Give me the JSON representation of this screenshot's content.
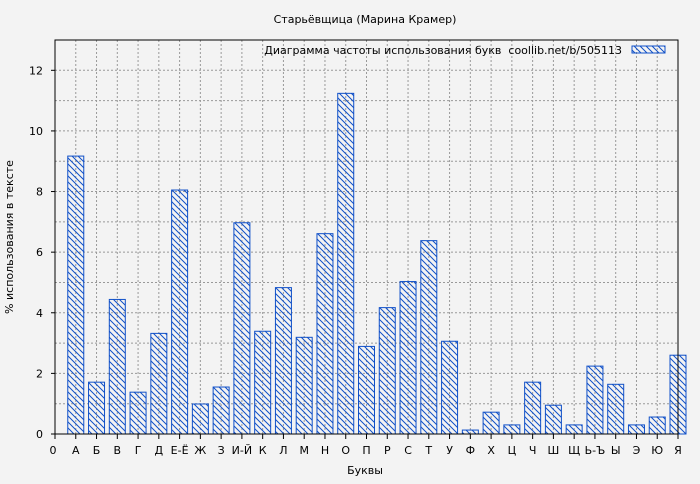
{
  "chart_data": {
    "type": "bar",
    "title": "Старьёвщица (Марина Крамер)",
    "xlabel": "Буквы",
    "ylabel": "% использования в тексте",
    "legend": {
      "label": "Диаграмма частоты использования букв  coollib.net/b/505113",
      "placement": "top-right"
    },
    "x_origin_label": "0",
    "categories": [
      "А",
      "Б",
      "В",
      "Г",
      "Д",
      "Е-Ё",
      "Ж",
      "З",
      "И-Й",
      "К",
      "Л",
      "М",
      "Н",
      "О",
      "П",
      "Р",
      "С",
      "Т",
      "У",
      "Ф",
      "Х",
      "Ц",
      "Ч",
      "Ш",
      "Щ",
      "Ь-Ъ",
      "Ы",
      "Э",
      "Ю",
      "Я"
    ],
    "values": [
      9.17,
      1.71,
      4.44,
      1.38,
      3.32,
      8.05,
      0.99,
      1.55,
      6.97,
      3.39,
      4.83,
      3.19,
      6.61,
      11.24,
      2.89,
      4.17,
      5.03,
      6.38,
      3.06,
      0.13,
      0.72,
      0.3,
      1.71,
      0.95,
      0.3,
      2.24,
      1.64,
      0.3,
      0.56,
      2.6
    ],
    "ylim": [
      0,
      13
    ],
    "yticks": [
      0,
      2,
      4,
      6,
      8,
      10,
      12
    ],
    "grid": true,
    "colors": {
      "bar_stroke": "#1050c8",
      "hatch": "#1050c8",
      "background": "#f3f3f3"
    }
  }
}
